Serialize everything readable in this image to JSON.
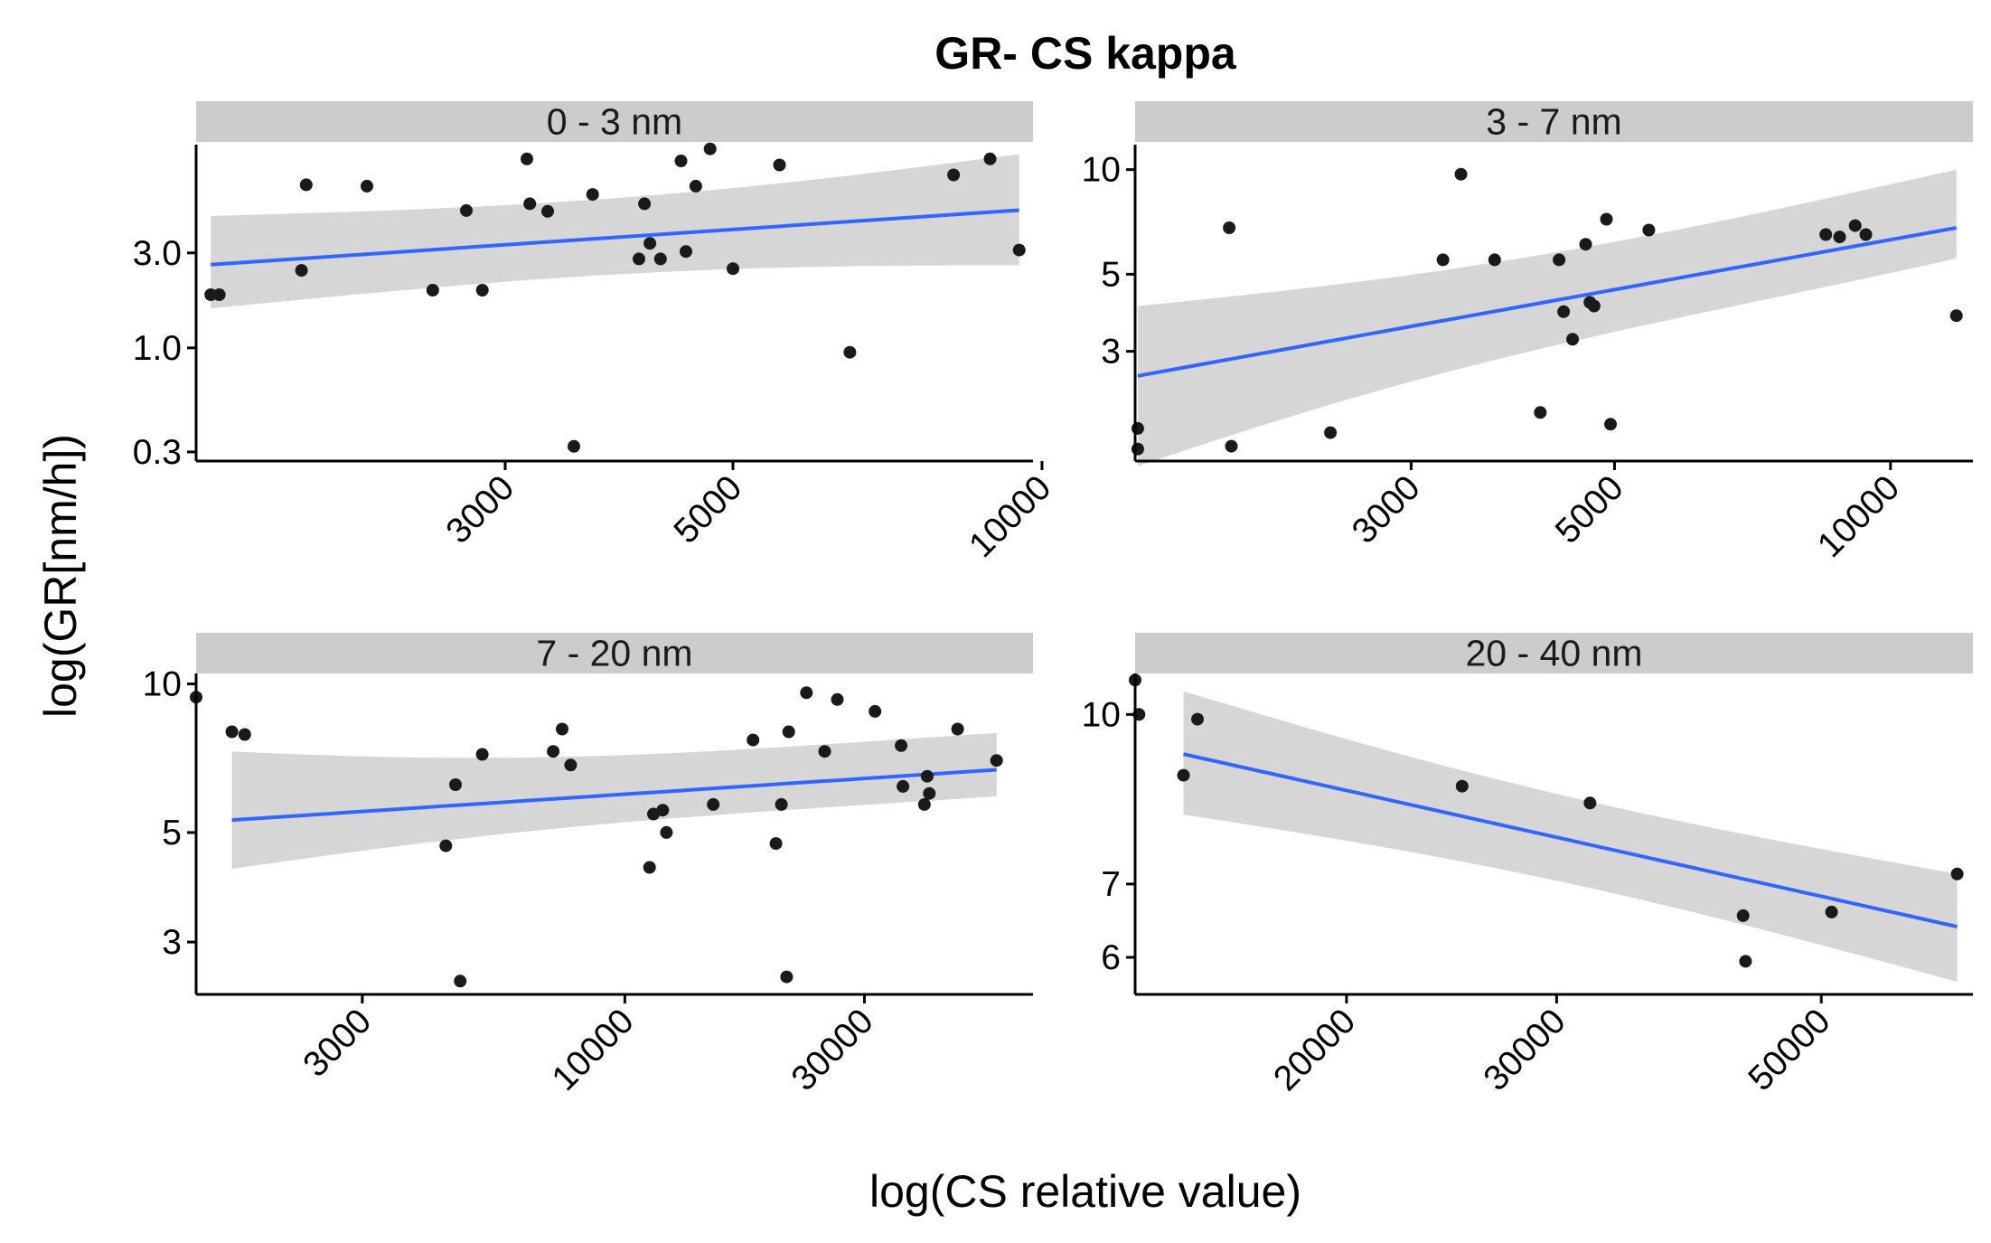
{
  "chart_data": {
    "type": "scatter",
    "title": "GR- CS kappa",
    "xlabel": "log(CS relative value)",
    "ylabel": "log(GR[nm/h])",
    "x_scale": "log",
    "y_scale": "log",
    "grid": false,
    "colors": {
      "points": "#1a1a1a",
      "fit_line": "#3366FF",
      "ribbon": "#d4d4d4",
      "strip": "#cccccc"
    },
    "panels": [
      {
        "strip": "0 - 3 nm",
        "xlim": [
          1500,
          9800
        ],
        "ylim": [
          0.27,
          10.5
        ],
        "xticks": [
          3000,
          5000,
          10000
        ],
        "xtick_labels": [
          "3000",
          "5000",
          "10000"
        ],
        "yticks": [
          0.3,
          1.0,
          3.0
        ],
        "ytick_labels": [
          "0.3",
          "1.0",
          "3.0"
        ],
        "points": [
          [
            1550,
            1.85
          ],
          [
            1580,
            1.85
          ],
          [
            1900,
            2.45
          ],
          [
            1920,
            6.6
          ],
          [
            2200,
            6.5
          ],
          [
            2550,
            1.95
          ],
          [
            2750,
            4.9
          ],
          [
            2850,
            1.95
          ],
          [
            3150,
            8.9
          ],
          [
            3170,
            5.3
          ],
          [
            3300,
            4.85
          ],
          [
            3500,
            0.32
          ],
          [
            3650,
            5.9
          ],
          [
            4050,
            2.8
          ],
          [
            4100,
            5.3
          ],
          [
            4150,
            3.35
          ],
          [
            4250,
            2.8
          ],
          [
            4450,
            8.7
          ],
          [
            4500,
            3.05
          ],
          [
            4600,
            6.5
          ],
          [
            4750,
            10.0
          ],
          [
            5000,
            2.5
          ],
          [
            5550,
            8.3
          ],
          [
            6500,
            0.95
          ],
          [
            8200,
            7.4
          ],
          [
            8900,
            8.9
          ],
          [
            9500,
            3.1
          ]
        ],
        "fit": {
          "x": [
            1550,
            9500
          ],
          "y": [
            2.62,
            4.92
          ],
          "lo": [
            1.58,
            2.6
          ],
          "hi": [
            4.6,
            9.4
          ]
        }
      },
      {
        "strip": "3 - 7 nm",
        "xlim": [
          1500,
          12300
        ],
        "ylim": [
          1.45,
          11.8
        ],
        "xticks": [
          3000,
          5000,
          10000
        ],
        "xtick_labels": [
          "3000",
          "5000",
          "10000"
        ],
        "yticks": [
          3,
          5,
          10
        ],
        "ytick_labels": [
          "3",
          "5",
          "10"
        ],
        "points": [
          [
            1510,
            1.8
          ],
          [
            1510,
            1.57
          ],
          [
            1900,
            6.8
          ],
          [
            1910,
            1.6
          ],
          [
            2450,
            1.75
          ],
          [
            3250,
            5.5
          ],
          [
            3400,
            9.7
          ],
          [
            3700,
            5.5
          ],
          [
            4150,
            2.0
          ],
          [
            4350,
            5.5
          ],
          [
            4400,
            3.9
          ],
          [
            4500,
            3.25
          ],
          [
            4650,
            6.1
          ],
          [
            4700,
            4.15
          ],
          [
            4750,
            4.05
          ],
          [
            4900,
            7.2
          ],
          [
            4950,
            1.85
          ],
          [
            5450,
            6.7
          ],
          [
            8500,
            6.5
          ],
          [
            8800,
            6.4
          ],
          [
            9150,
            6.9
          ],
          [
            9400,
            6.5
          ],
          [
            11800,
            3.8
          ]
        ],
        "fit": {
          "x": [
            1510,
            11800
          ],
          "y": [
            2.55,
            6.8
          ],
          "lo": [
            1.4,
            5.55
          ],
          "hi": [
            4.05,
            10.0
          ]
        }
      },
      {
        "strip": "7 - 20 nm",
        "xlim": [
          1400,
          65000
        ],
        "ylim": [
          2.35,
          10.5
        ],
        "xticks": [
          3000,
          10000,
          30000
        ],
        "xtick_labels": [
          "3000",
          "10000",
          "30000"
        ],
        "yticks": [
          3,
          5,
          10
        ],
        "ytick_labels": [
          "3",
          "5",
          "10"
        ],
        "points": [
          [
            1400,
            9.4
          ],
          [
            1650,
            8.0
          ],
          [
            1750,
            7.9
          ],
          [
            4400,
            4.7
          ],
          [
            4600,
            6.25
          ],
          [
            4700,
            2.5
          ],
          [
            5200,
            7.2
          ],
          [
            7200,
            7.3
          ],
          [
            7500,
            8.1
          ],
          [
            7800,
            6.85
          ],
          [
            11200,
            4.25
          ],
          [
            11400,
            5.45
          ],
          [
            11900,
            5.55
          ],
          [
            12100,
            5.0
          ],
          [
            15000,
            5.7
          ],
          [
            18000,
            7.7
          ],
          [
            20000,
            4.75
          ],
          [
            20500,
            5.7
          ],
          [
            21000,
            2.55
          ],
          [
            21200,
            8.0
          ],
          [
            23000,
            9.6
          ],
          [
            25000,
            7.3
          ],
          [
            26500,
            9.3
          ],
          [
            31500,
            8.8
          ],
          [
            35500,
            7.5
          ],
          [
            35800,
            6.2
          ],
          [
            39500,
            5.7
          ],
          [
            40000,
            6.5
          ],
          [
            40400,
            6.0
          ],
          [
            46000,
            8.1
          ],
          [
            55000,
            7.0
          ]
        ],
        "fit": {
          "x": [
            1650,
            55000
          ],
          "y": [
            5.3,
            6.7
          ],
          "lo": [
            4.22,
            5.92
          ],
          "hi": [
            7.3,
            7.95
          ]
        }
      },
      {
        "strip": "20 - 40 nm",
        "xlim": [
          13300,
          67000
        ],
        "ylim": [
          5.55,
          10.9
        ],
        "xticks": [
          20000,
          30000,
          50000
        ],
        "xtick_labels": [
          "20000",
          "30000",
          "50000"
        ],
        "yticks": [
          6,
          7,
          10
        ],
        "ytick_labels": [
          "6",
          "7",
          "10"
        ],
        "points": [
          [
            13300,
            10.75
          ],
          [
            13400,
            10.0
          ],
          [
            14600,
            8.8
          ],
          [
            15000,
            9.9
          ],
          [
            25000,
            8.6
          ],
          [
            32000,
            8.3
          ],
          [
            43000,
            6.55
          ],
          [
            43200,
            5.95
          ],
          [
            51000,
            6.6
          ],
          [
            65000,
            7.15
          ]
        ],
        "fit": {
          "x": [
            14600,
            65000
          ],
          "y": [
            9.2,
            6.4
          ],
          "lo": [
            8.1,
            5.7
          ],
          "hi": [
            10.5,
            7.15
          ]
        }
      }
    ]
  }
}
